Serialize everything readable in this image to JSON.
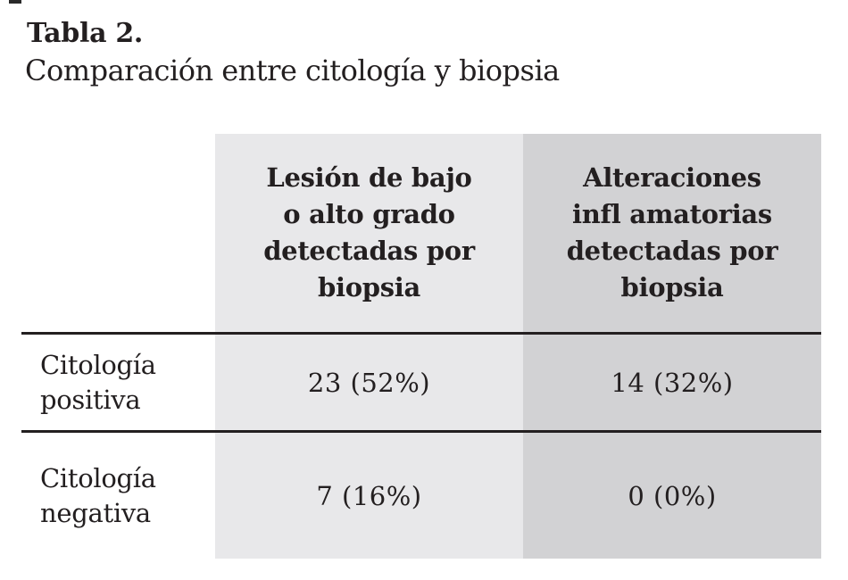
{
  "title": "Tabla 2.",
  "subtitle": "Comparación entre citología y biopsia",
  "table": {
    "column_headers": [
      "Lesión de bajo\no alto grado\ndetectadas por\nbiopsia",
      "Alteraciones\ninfl amatorias\ndetectadas por\nbiopsia"
    ],
    "rows": [
      {
        "label": "Citología\npositiva",
        "values": [
          "23 (52%)",
          "14 (32%)"
        ]
      },
      {
        "label": "Citología\nnegativa",
        "values": [
          "7 (16%)",
          "0 (0%)"
        ]
      }
    ]
  },
  "colors": {
    "column_light_bg": "#e8e8ea",
    "column_dark_bg": "#d2d2d4",
    "rule": "#231f20",
    "text": "#231f20"
  }
}
